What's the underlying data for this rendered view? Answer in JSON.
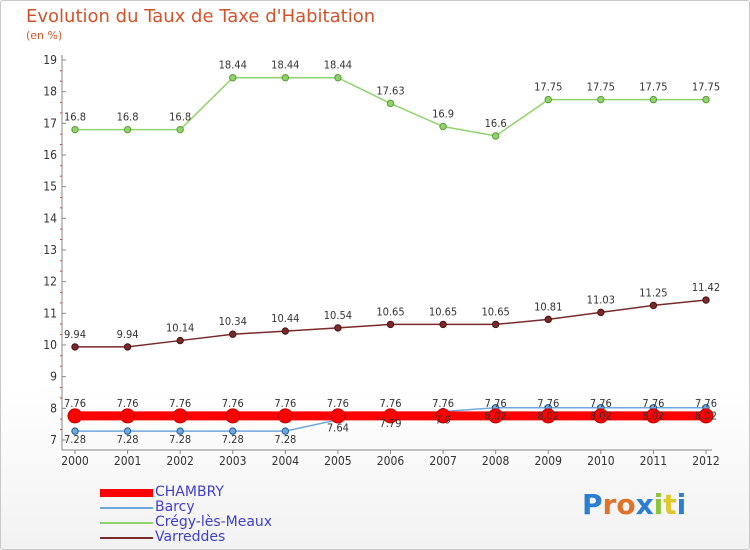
{
  "title": "Evolution du Taux de Taxe d'Habitation",
  "subtitle": "(en %)",
  "logo": {
    "letters": [
      "P",
      "r",
      "o",
      "x",
      "i",
      "t",
      "i"
    ],
    "colors": [
      "#2a7fd4",
      "#e0722a",
      "#e0722a",
      "#2a7fd4",
      "#8fc43a",
      "#e0c72a",
      "#2a7fd4"
    ]
  },
  "chart_data": {
    "type": "line",
    "x": [
      "2000",
      "2001",
      "2002",
      "2003",
      "2004",
      "2005",
      "2006",
      "2007",
      "2008",
      "2009",
      "2010",
      "2011",
      "2012"
    ],
    "ylim": [
      7,
      19
    ],
    "yticks": [
      "7",
      "8",
      "9",
      "10",
      "11",
      "12",
      "13",
      "14",
      "15",
      "16",
      "17",
      "18",
      "19"
    ],
    "grid": false,
    "legend_position": "bottom-left",
    "series": [
      {
        "name": "CHAMBRY",
        "color": "#ff0000",
        "values": [
          7.76,
          7.76,
          7.76,
          7.76,
          7.76,
          7.76,
          7.76,
          7.76,
          7.76,
          7.76,
          7.76,
          7.76,
          7.76
        ],
        "labels": [
          "7.76",
          "7.76",
          "7.76",
          "7.76",
          "7.76",
          "7.76",
          "7.76",
          "7.76",
          "7.76",
          "7.76",
          "7.76",
          "7.76",
          "7.76"
        ]
      },
      {
        "name": "Barcy",
        "color": "#6fa8dc",
        "values": [
          7.28,
          7.28,
          7.28,
          7.28,
          7.28,
          7.64,
          7.79,
          7.9,
          8.02,
          8.02,
          8.02,
          8.02,
          8.02
        ],
        "labels": [
          "7.28",
          "7.28",
          "7.28",
          "7.28",
          "7.28",
          "7.64",
          "7.79",
          "7.9",
          "8.02",
          "8.02",
          "8.02",
          "8.02",
          "8.02"
        ]
      },
      {
        "name": "Crégy-lès-Meaux",
        "color": "#8fd36b",
        "values": [
          16.8,
          16.8,
          16.8,
          18.44,
          18.44,
          18.44,
          17.63,
          16.9,
          16.6,
          17.75,
          17.75,
          17.75,
          17.75
        ],
        "labels": [
          "16.8",
          "16.8",
          "16.8",
          "18.44",
          "18.44",
          "18.44",
          "17.63",
          "16.9",
          "16.6",
          "17.75",
          "17.75",
          "17.75",
          "17.75"
        ]
      },
      {
        "name": "Varreddes",
        "color": "#7a2a2a",
        "values": [
          9.94,
          9.94,
          10.14,
          10.34,
          10.44,
          10.54,
          10.65,
          10.65,
          10.65,
          10.81,
          11.03,
          11.25,
          11.42
        ],
        "labels": [
          "9.94",
          "9.94",
          "10.14",
          "10.34",
          "10.44",
          "10.54",
          "10.65",
          "10.65",
          "10.65",
          "10.81",
          "11.03",
          "11.25",
          "11.42"
        ]
      }
    ]
  }
}
